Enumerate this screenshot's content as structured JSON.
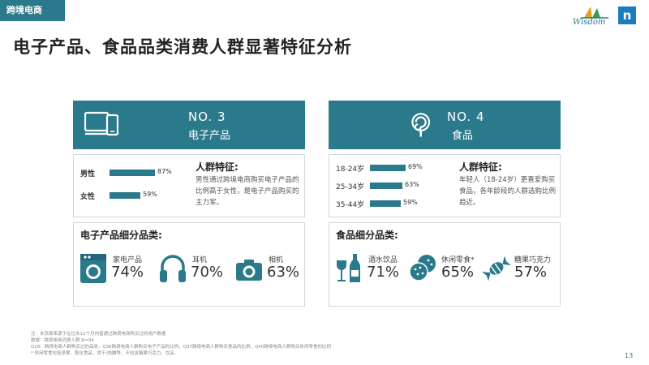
{
  "section_tag": "跨境电商",
  "brand": {
    "wisdom_text": "Wisdom",
    "n_letter": "n"
  },
  "title": "电子产品、食品品类消费人群显著特征分析",
  "panels": [
    {
      "rank": "NO. 3",
      "category": "电子产品",
      "icon": "devices-icon",
      "bars": [
        {
          "label": "男性",
          "value": 87,
          "value_text": "87%"
        },
        {
          "label": "女性",
          "value": 59,
          "value_text": "59%"
        }
      ],
      "feature_title": "人群特征:",
      "feature_desc": "男性通过跨境电商购买电子产品的比例高于女性，是电子产品购买的主力军。",
      "sub_title": "电子产品细分品类:",
      "items": [
        {
          "name": "家电产品",
          "pct": "74%",
          "icon": "washing-machine-icon"
        },
        {
          "name": "耳机",
          "pct": "70%",
          "icon": "headphones-icon"
        },
        {
          "name": "相机",
          "pct": "63%",
          "icon": "camera-icon"
        }
      ]
    },
    {
      "rank": "NO. 4",
      "category": "食品",
      "icon": "lollipop-icon",
      "bars": [
        {
          "label": "18-24岁",
          "value": 69,
          "value_text": "69%"
        },
        {
          "label": "25-34岁",
          "value": 63,
          "value_text": "63%"
        },
        {
          "label": "35-44岁",
          "value": 59,
          "value_text": "59%"
        }
      ],
      "feature_title": "人群特征:",
      "feature_desc": "年轻人（18-24岁）更喜爱购买食品，各年龄段的人群选购比例趋近。",
      "sub_title": "食品细分品类:",
      "items": [
        {
          "name": "酒水饮品",
          "pct": "71%",
          "icon": "wine-icon"
        },
        {
          "name": "休闲零食*",
          "pct": "65%",
          "icon": "snacks-icon"
        },
        {
          "name": "糖果巧克力",
          "pct": "57%",
          "icon": "candy-icon"
        }
      ]
    }
  ],
  "notes": [
    "注：本页面来源于在过去12个月内曾通过跨境电商购买过的用户数据",
    "数据：跨境电商消费人群 N=94",
    "Q28：跨境电商人群购买过的品类，Q36跨境电商人群购买电子产品的比例，Q37跨境电商人群购买食品的比例，Q40跨境电商人群购买休闲零食的比例",
    "* 休闲零食包括坚果、膨化食品、饼干/肉脯等，不包含糖果巧克力、饮品"
  ],
  "page_number": "13",
  "colors": {
    "accent": "#2b7a8b",
    "brand_blue": "#1b7dbf"
  }
}
